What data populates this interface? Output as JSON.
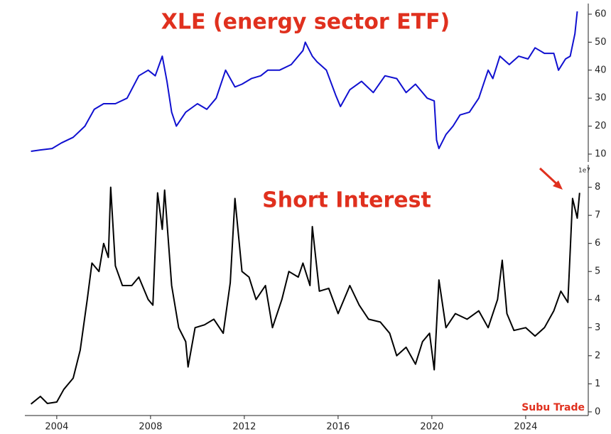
{
  "chart_data": [
    {
      "type": "line",
      "title": "XLE (energy sector ETF)",
      "color": "#1010d0",
      "xlim": [
        2002.64,
        2026.67
      ],
      "ylim": [
        7.2,
        63.8
      ],
      "yticks": [
        10,
        20,
        30,
        40,
        50,
        60
      ],
      "x": [
        2002.9,
        2003.3,
        2003.8,
        2004.2,
        2004.7,
        2005.2,
        2005.6,
        2006,
        2006.5,
        2007,
        2007.5,
        2007.9,
        2008.2,
        2008.5,
        2008.7,
        2008.9,
        2009.1,
        2009.5,
        2010,
        2010.4,
        2010.8,
        2011.2,
        2011.6,
        2011.9,
        2012.3,
        2012.7,
        2013,
        2013.5,
        2014,
        2014.5,
        2014.6,
        2014.9,
        2015.1,
        2015.5,
        2015.9,
        2016.1,
        2016.5,
        2017,
        2017.5,
        2018,
        2018.5,
        2018.9,
        2019.3,
        2019.8,
        2020.1,
        2020.2,
        2020.3,
        2020.6,
        2020.9,
        2021.2,
        2021.6,
        2022,
        2022.4,
        2022.6,
        2022.9,
        2023.3,
        2023.7,
        2024.1,
        2024.4,
        2024.8,
        2025.2,
        2025.4,
        2025.7,
        2025.9,
        2026.1,
        2026.2
      ],
      "values": [
        11,
        11.5,
        12,
        14,
        16,
        20,
        26,
        28,
        28,
        30,
        38,
        40,
        38,
        45,
        36,
        25,
        20,
        25,
        28,
        26,
        30,
        40,
        34,
        35,
        37,
        38,
        40,
        40,
        42,
        47,
        50,
        45,
        43,
        40,
        31,
        27,
        33,
        36,
        32,
        38,
        37,
        32,
        35,
        30,
        29,
        15,
        12,
        17,
        20,
        24,
        25,
        30,
        40,
        37,
        45,
        42,
        45,
        44,
        48,
        46,
        46,
        40,
        44,
        45,
        53,
        61
      ]
    },
    {
      "type": "line",
      "title": "Short Interest",
      "color": "#000000",
      "offset_label": "1e7",
      "watermark": "Subu Trade",
      "xlim": [
        2002.64,
        2026.67
      ],
      "xticks": [
        2004,
        2008,
        2012,
        2016,
        2020,
        2024
      ],
      "ylim": [
        -0.13,
        8.8
      ],
      "yticks": [
        0,
        1,
        2,
        3,
        4,
        5,
        6,
        7,
        8
      ],
      "x": [
        2002.9,
        2003.3,
        2003.6,
        2004,
        2004.3,
        2004.7,
        2005,
        2005.3,
        2005.5,
        2005.8,
        2006,
        2006.2,
        2006.3,
        2006.5,
        2006.8,
        2007.2,
        2007.5,
        2007.9,
        2008.1,
        2008.3,
        2008.5,
        2008.6,
        2008.9,
        2009.2,
        2009.5,
        2009.6,
        2009.9,
        2010.3,
        2010.7,
        2011.1,
        2011.4,
        2011.6,
        2011.9,
        2012.2,
        2012.5,
        2012.9,
        2013.2,
        2013.6,
        2013.9,
        2014.3,
        2014.5,
        2014.8,
        2014.9,
        2015.2,
        2015.6,
        2016,
        2016.5,
        2016.9,
        2017.3,
        2017.8,
        2018.2,
        2018.5,
        2018.9,
        2019.3,
        2019.6,
        2019.9,
        2020.1,
        2020.3,
        2020.6,
        2021,
        2021.5,
        2022,
        2022.4,
        2022.8,
        2023,
        2023.2,
        2023.5,
        2024,
        2024.4,
        2024.8,
        2025.2,
        2025.5,
        2025.8,
        2026,
        2026.2,
        2026.3
      ],
      "values": [
        0.28,
        0.55,
        0.3,
        0.35,
        0.8,
        1.2,
        2.2,
        4,
        5.3,
        5,
        6,
        5.5,
        8,
        5.2,
        4.5,
        4.5,
        4.8,
        4,
        3.8,
        7.8,
        6.5,
        7.9,
        4.5,
        3,
        2.5,
        1.6,
        3,
        3.1,
        3.3,
        2.8,
        4.6,
        7.6,
        5,
        4.8,
        4,
        4.5,
        3,
        4,
        5,
        4.8,
        5.3,
        4.5,
        6.6,
        4.3,
        4.4,
        3.5,
        4.5,
        3.8,
        3.3,
        3.2,
        2.8,
        2,
        2.3,
        1.7,
        2.5,
        2.8,
        1.5,
        4.7,
        3,
        3.5,
        3.3,
        3.6,
        3,
        4,
        5.4,
        3.5,
        2.9,
        3,
        2.7,
        3,
        3.6,
        4.3,
        3.9,
        7.6,
        6.9,
        7.8
      ]
    }
  ]
}
